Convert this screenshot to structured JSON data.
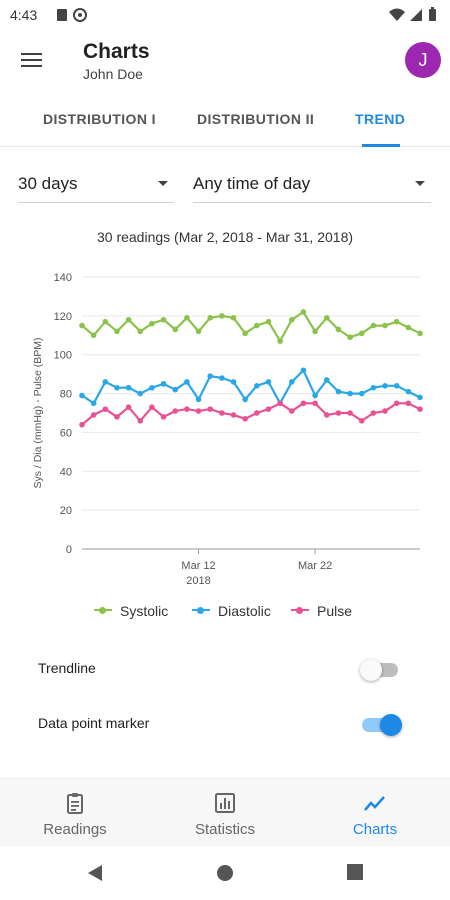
{
  "status_bar": {
    "time": "4:43"
  },
  "app_bar": {
    "title": "Charts",
    "subtitle": "John Doe",
    "avatar_letter": "J",
    "avatar_color": "#9c27b0"
  },
  "tabs": [
    {
      "label": "DISTRIBUTION I",
      "active": false
    },
    {
      "label": "DISTRIBUTION II",
      "active": false
    },
    {
      "label": "TREND",
      "active": true
    }
  ],
  "filters": {
    "period": "30 days",
    "time_of_day": "Any time of day"
  },
  "reading_range": "30 readings (Mar 2, 2018 - Mar 31, 2018)",
  "chart_data": {
    "type": "line",
    "ylabel": "Sys / Dia (mmHg) - Pulse (BPM)",
    "ylim": [
      0,
      140
    ],
    "yticks": [
      "0",
      "20",
      "40",
      "60",
      "80",
      "100",
      "120",
      "140"
    ],
    "x": [
      2,
      3,
      4,
      5,
      6,
      7,
      8,
      9,
      10,
      11,
      12,
      13,
      14,
      15,
      16,
      17,
      18,
      19,
      20,
      21,
      22,
      23,
      24,
      25,
      26,
      27,
      28,
      29,
      30,
      31
    ],
    "xlim": [
      2,
      31
    ],
    "xticks": [
      {
        "x": 12,
        "label": "Mar 12",
        "sublabel": "2018"
      },
      {
        "x": 22,
        "label": "Mar 22",
        "sublabel": ""
      }
    ],
    "grid": true,
    "legend_position": "bottom",
    "series": [
      {
        "name": "Systolic",
        "color": "#8bc34a",
        "values": [
          115,
          110,
          117,
          112,
          118,
          112,
          116,
          118,
          113,
          119,
          112,
          119,
          120,
          119,
          111,
          115,
          117,
          107,
          118,
          122,
          112,
          119,
          113,
          109,
          111,
          115,
          115,
          117,
          114,
          111
        ]
      },
      {
        "name": "Diastolic",
        "color": "#29a7e6",
        "values": [
          79,
          75,
          86,
          83,
          83,
          80,
          83,
          85,
          82,
          86,
          77,
          89,
          88,
          86,
          77,
          84,
          86,
          75,
          86,
          92,
          79,
          87,
          81,
          80,
          80,
          83,
          84,
          84,
          81,
          78
        ]
      },
      {
        "name": "Pulse",
        "color": "#e95193",
        "values": [
          64,
          69,
          72,
          68,
          73,
          66,
          73,
          68,
          71,
          72,
          71,
          72,
          70,
          69,
          67,
          70,
          72,
          75,
          71,
          75,
          75,
          69,
          70,
          70,
          66,
          70,
          71,
          75,
          75,
          72
        ]
      }
    ]
  },
  "settings": {
    "trendline": {
      "label": "Trendline",
      "on": false
    },
    "marker": {
      "label": "Data point marker",
      "on": true
    }
  },
  "bottom_nav": [
    {
      "label": "Readings",
      "icon": "clipboard-icon",
      "active": false
    },
    {
      "label": "Statistics",
      "icon": "bar-chart-icon",
      "active": false
    },
    {
      "label": "Charts",
      "icon": "trend-icon",
      "active": true
    }
  ],
  "colors": {
    "accent": "#1e88e5",
    "switch_on_track": "#90caf9",
    "switch_off_track": "#bdbdbd"
  }
}
